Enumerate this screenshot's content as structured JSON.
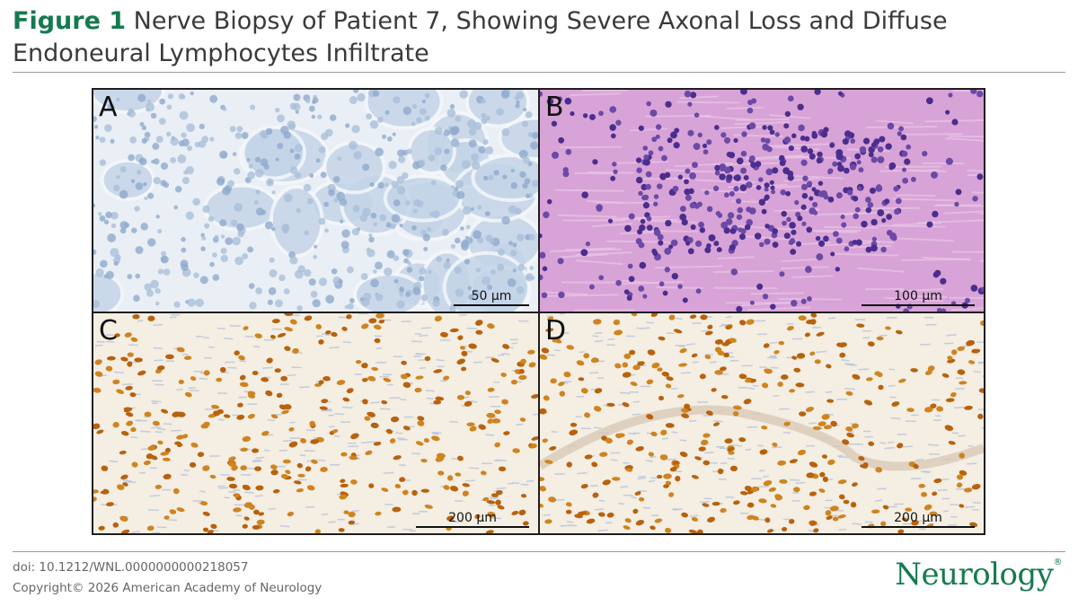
{
  "header": {
    "figure_label": "Figure 1",
    "title": "Nerve Biopsy of Patient 7, Showing Severe Axonal Loss and Diffuse Endoneural Lymphocytes Infiltrate"
  },
  "panels": [
    {
      "label": "A",
      "scale_bar": "50 µm"
    },
    {
      "label": "B",
      "scale_bar": "100 µm"
    },
    {
      "label": "C",
      "scale_bar": "200 µm"
    },
    {
      "label": "D",
      "scale_bar": "200 µm"
    }
  ],
  "footer": {
    "doi": "doi: 10.1212/WNL.0000000000218057",
    "copyright": "Copyright© 2026 American Academy of Neurology",
    "logo": "Neurology",
    "logo_mark": "®"
  }
}
